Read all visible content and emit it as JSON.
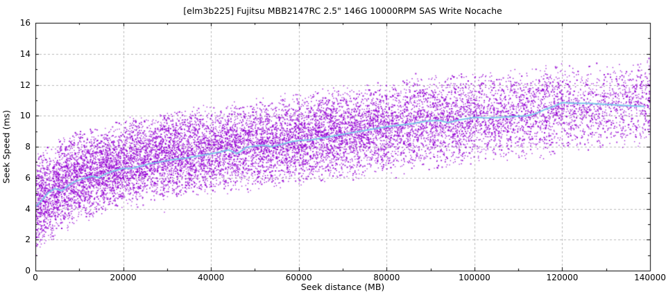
{
  "chart_data": {
    "type": "scatter",
    "title": "[elm3b225] Fujitsu MBB2147RC 2.5\" 146G 10000RPM SAS Write Nocache",
    "xlabel": "Seek distance (MB)",
    "ylabel": "Seek Speed (ms)",
    "xlim": [
      0,
      140000
    ],
    "ylim": [
      0,
      16
    ],
    "xticks": [
      0,
      20000,
      40000,
      60000,
      80000,
      100000,
      120000,
      140000
    ],
    "yticks": [
      0,
      2,
      4,
      6,
      8,
      10,
      12,
      14,
      16
    ],
    "x_minor_tick_step": 10000,
    "y_minor_tick_step": 1,
    "grid": {
      "style": "dashed",
      "on": "major-ticks"
    },
    "legend": "none",
    "colors": {
      "scatter": "#9400d3",
      "trend_line": "#7ec8ea",
      "grid": "#b9b9b9",
      "axis": "#000000",
      "background": "#ffffff"
    },
    "trend_line_points": [
      [
        200,
        4.15
      ],
      [
        1500,
        4.55
      ],
      [
        3000,
        5.05
      ],
      [
        4500,
        5.3
      ],
      [
        6000,
        5.15
      ],
      [
        7500,
        5.5
      ],
      [
        9000,
        5.75
      ],
      [
        11000,
        5.95
      ],
      [
        13000,
        6.1
      ],
      [
        14500,
        6.0
      ],
      [
        16000,
        6.25
      ],
      [
        18000,
        6.45
      ],
      [
        20000,
        6.6
      ],
      [
        22000,
        6.6
      ],
      [
        24000,
        6.75
      ],
      [
        26000,
        6.9
      ],
      [
        28000,
        7.0
      ],
      [
        30000,
        7.1
      ],
      [
        32000,
        7.2
      ],
      [
        34000,
        7.25
      ],
      [
        36000,
        7.35
      ],
      [
        38000,
        7.45
      ],
      [
        40000,
        7.55
      ],
      [
        42000,
        7.65
      ],
      [
        44000,
        7.8
      ],
      [
        46000,
        7.55
      ],
      [
        48000,
        7.95
      ],
      [
        50000,
        8.05
      ],
      [
        52000,
        8.1
      ],
      [
        54000,
        8.0
      ],
      [
        56000,
        8.15
      ],
      [
        58000,
        8.3
      ],
      [
        60000,
        8.4
      ],
      [
        63000,
        8.45
      ],
      [
        66000,
        8.6
      ],
      [
        69000,
        8.75
      ],
      [
        72000,
        8.9
      ],
      [
        75000,
        9.05
      ],
      [
        78000,
        9.2
      ],
      [
        80000,
        9.3
      ],
      [
        83000,
        9.4
      ],
      [
        86000,
        9.5
      ],
      [
        89000,
        9.65
      ],
      [
        92000,
        9.7
      ],
      [
        94000,
        9.55
      ],
      [
        96000,
        9.7
      ],
      [
        98000,
        9.8
      ],
      [
        100000,
        9.9
      ],
      [
        103000,
        9.85
      ],
      [
        106000,
        9.9
      ],
      [
        109000,
        9.95
      ],
      [
        112000,
        10.0
      ],
      [
        114000,
        10.15
      ],
      [
        116000,
        10.4
      ],
      [
        118000,
        10.6
      ],
      [
        120000,
        10.85
      ],
      [
        123000,
        10.8
      ],
      [
        126000,
        10.8
      ],
      [
        129000,
        10.75
      ],
      [
        132000,
        10.7
      ],
      [
        135000,
        10.65
      ],
      [
        138800,
        10.6
      ]
    ],
    "scatter_cloud": {
      "points_estimate": 13500,
      "seed": 20251110,
      "envelope_x": [
        0,
        3000,
        6000,
        10000,
        20000,
        30000,
        40000,
        60000,
        80000,
        100000,
        120000,
        140000
      ],
      "lower": [
        0.9,
        1.6,
        2.4,
        3.0,
        3.9,
        4.4,
        4.8,
        5.4,
        6.1,
        6.7,
        7.4,
        8.0
      ],
      "upper": [
        7.6,
        8.2,
        8.8,
        9.2,
        9.9,
        10.4,
        10.9,
        11.7,
        12.4,
        13.0,
        13.5,
        13.9
      ],
      "x_density_weights": [
        1.35,
        1.3,
        1.25,
        1.2,
        1.15,
        1.1,
        1.0,
        0.95,
        0.8,
        0.6,
        0.45
      ],
      "outlier_fraction": 0.015
    }
  }
}
